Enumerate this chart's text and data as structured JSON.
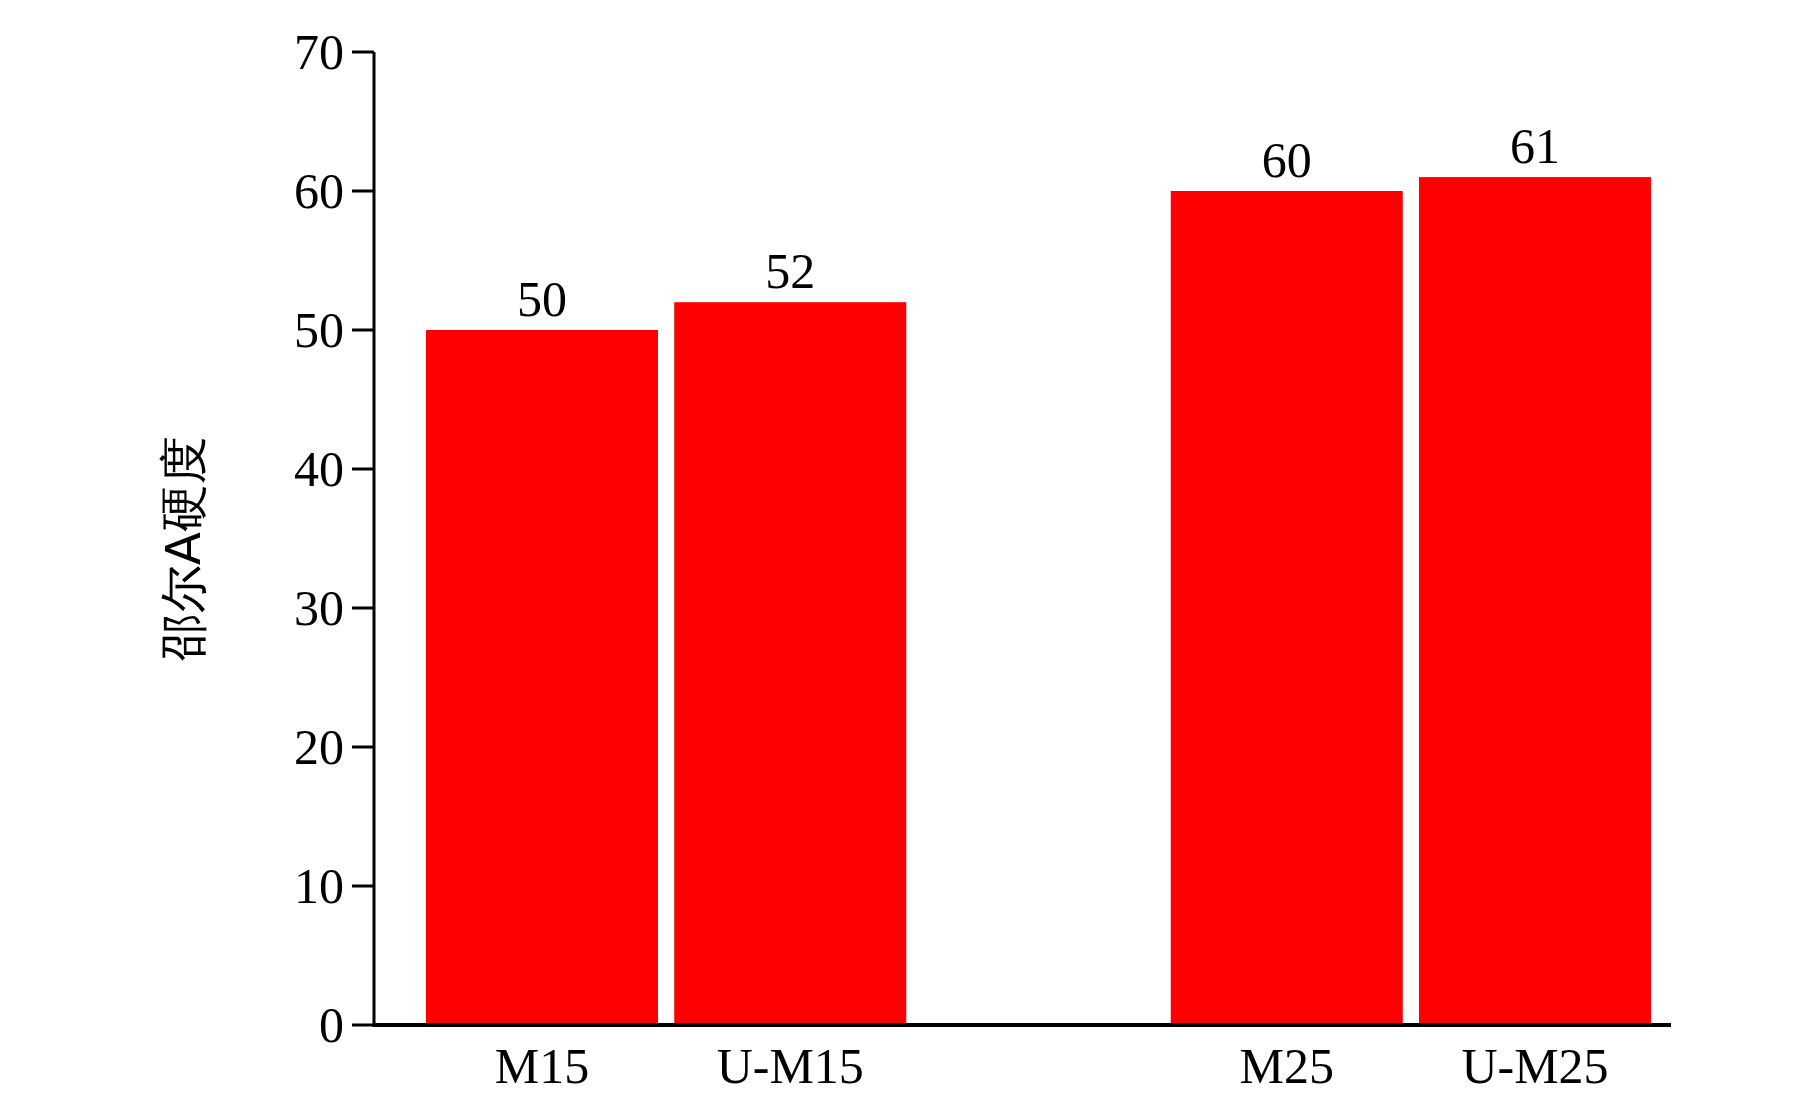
{
  "chart_data": {
    "type": "bar",
    "ylabel": "邵尔A硬度",
    "categories": [
      "M15",
      "U-M15",
      null,
      "M25",
      "U-M25"
    ],
    "values": [
      50,
      52,
      null,
      60,
      61
    ],
    "color": "#fe0000",
    "ylim": [
      0,
      70
    ],
    "yticks": [
      0,
      10,
      20,
      30,
      40,
      50,
      60,
      70
    ],
    "data_labels": true,
    "grid": false
  }
}
